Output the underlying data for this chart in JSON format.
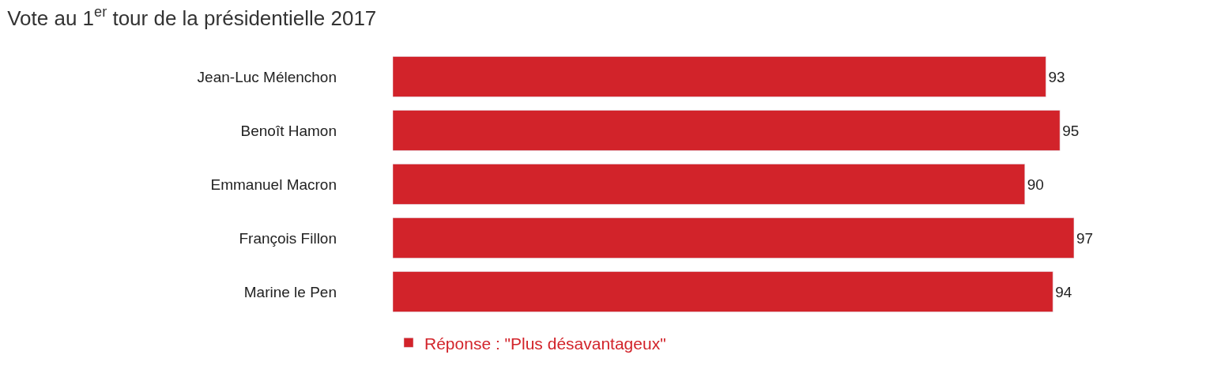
{
  "chart_data": {
    "type": "bar",
    "orientation": "horizontal",
    "title": "Vote au 1$^{er}$ tour de la présidentielle 2017",
    "categories": [
      "Jean-Luc Mélenchon",
      "Benoît Hamon",
      "Emmanuel Macron",
      "François Fillon",
      "Marine le Pen"
    ],
    "series": [
      {
        "name": "Réponse : \"Plus désavantageux\"",
        "color": "#d2232a",
        "values": [
          93,
          95,
          90,
          97,
          94
        ]
      }
    ],
    "data_labels": true,
    "legend": "bottom",
    "tick_labels": "y"
  }
}
